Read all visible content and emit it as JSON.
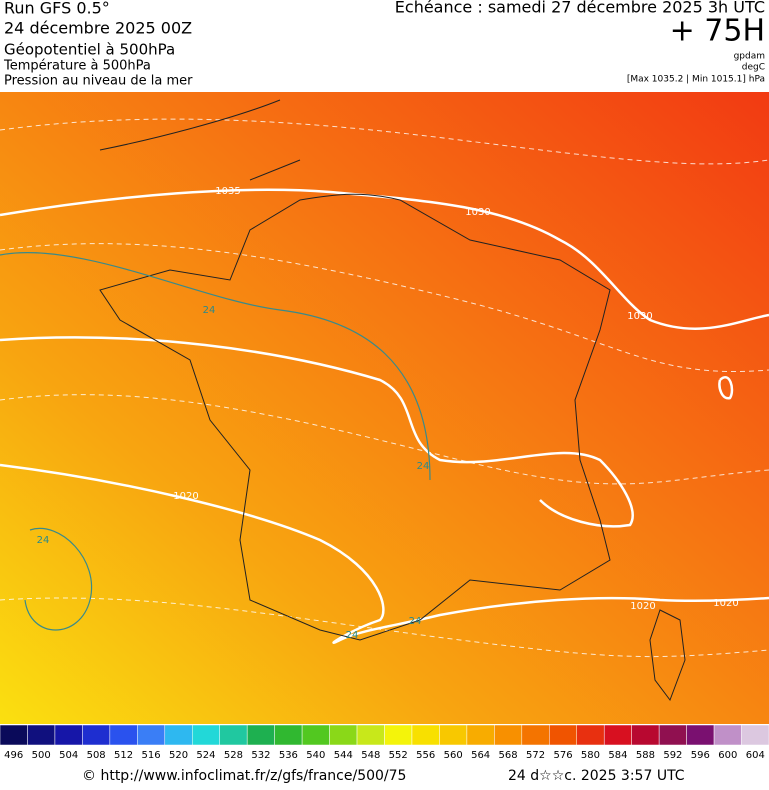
{
  "header": {
    "run": "Run GFS 0.5°",
    "run_date": "24 décembre 2025 00Z",
    "field_1": "Géopotentiel à 500hPa",
    "field_2": "Température à 500hPa",
    "field_3": "Pression au niveau de la mer",
    "forecast": "Echéance : samedi 27 décembre 2025 3h UTC",
    "lead": "+ 75H",
    "unit_1": "gpdam",
    "unit_2": "degC",
    "extremes": "[Max 1035.2 | Min 1015.1] hPa"
  },
  "map": {
    "isobar_labels": [
      "1035",
      "1030",
      "1030",
      "1020",
      "1020",
      "1020"
    ],
    "temperature_labels": [
      "24",
      "24",
      "24",
      "24",
      "24"
    ]
  },
  "scale": {
    "values": [
      496,
      500,
      504,
      508,
      512,
      516,
      520,
      524,
      528,
      532,
      536,
      540,
      544,
      548,
      552,
      556,
      560,
      564,
      568,
      572,
      576,
      580,
      584,
      588,
      592,
      596,
      600,
      604
    ],
    "colors": [
      "#0a0a5a",
      "#10107e",
      "#1616a8",
      "#1e2ed0",
      "#2a52ee",
      "#3a7ef6",
      "#2eb8f0",
      "#22d8d8",
      "#20c8a0",
      "#1eb050",
      "#30b830",
      "#52c820",
      "#8ad818",
      "#c8e81a",
      "#f4f40a",
      "#f8e000",
      "#f8c800",
      "#f8ac00",
      "#f89000",
      "#f47400",
      "#f05400",
      "#e83010",
      "#d81020",
      "#b80830",
      "#901050",
      "#7a1070",
      "#c090c8",
      "#dcc8e0"
    ]
  },
  "footer": {
    "source": "© http://www.infoclimat.fr/z/gfs/france/500/75",
    "timestamp": "24 d☆☆c. 2025  3:57 UTC"
  }
}
